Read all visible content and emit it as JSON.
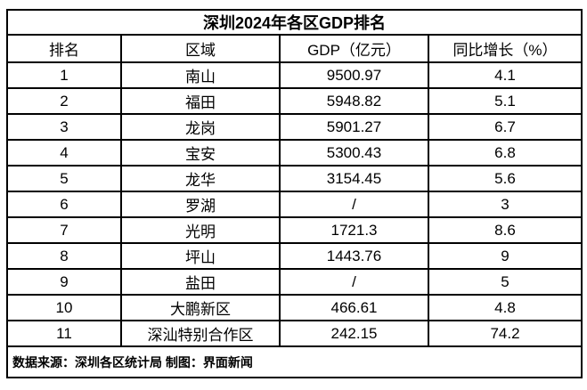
{
  "chart_data": {
    "type": "table",
    "title": "深圳2024年各区GDP排名",
    "columns": [
      "排名",
      "区域",
      "GDP（亿元）",
      "同比增长（%）"
    ],
    "rows": [
      [
        "1",
        "南山",
        "9500.97",
        "4.1"
      ],
      [
        "2",
        "福田",
        "5948.82",
        "5.1"
      ],
      [
        "3",
        "龙岗",
        "5901.27",
        "6.7"
      ],
      [
        "4",
        "宝安",
        "5300.43",
        "6.8"
      ],
      [
        "5",
        "龙华",
        "3154.45",
        "5.6"
      ],
      [
        "6",
        "罗湖",
        "/",
        "3"
      ],
      [
        "7",
        "光明",
        "1721.3",
        "8.6"
      ],
      [
        "8",
        "坪山",
        "1443.76",
        "9"
      ],
      [
        "9",
        "盐田",
        "/",
        "5"
      ],
      [
        "10",
        "大鹏新区",
        "466.61",
        "4.8"
      ],
      [
        "11",
        "深汕特别合作区",
        "242.15",
        "74.2"
      ]
    ],
    "footnote": "数据来源：深圳各区统计局 制图：界面新闻",
    "layout": {
      "border_color": "#000000",
      "background": "#ffffff",
      "text_color": "#000000",
      "grid": "on",
      "alignment": "center"
    }
  }
}
